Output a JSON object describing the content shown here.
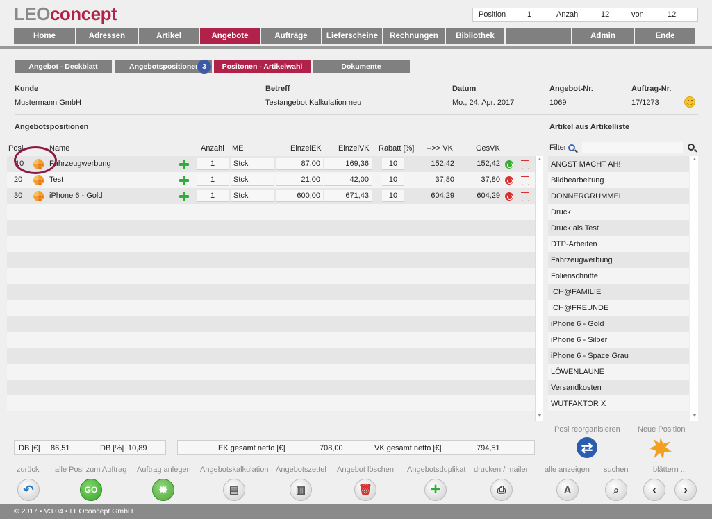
{
  "logo": {
    "part1": "LEO",
    "part2": "concept"
  },
  "infobar": {
    "position_label": "Position",
    "position_value": "1",
    "anzahl_label": "Anzahl",
    "anzahl_value": "12",
    "von_label": "von",
    "von_value": "12"
  },
  "mainnav": [
    "Home",
    "Adressen",
    "Artikel",
    "Angebote",
    "Aufträge",
    "Lieferscheine",
    "Rechnungen",
    "Bibliothek",
    "",
    "Admin",
    "Ende"
  ],
  "subnav": {
    "deckblatt": "Angebot - Deckblatt",
    "positionen": "Angebotspositionen",
    "badge": "3",
    "artikelwahl": "Positonen - Artikelwahl",
    "dokumente": "Dokumente"
  },
  "header": {
    "kunde_label": "Kunde",
    "kunde_value": "Mustermann GmbH",
    "betreff_label": "Betreff",
    "betreff_value": "Testangebot Kalkulation neu",
    "datum_label": "Datum",
    "datum_value": "Mo., 24. Apr. 2017",
    "angebot_label": "Angebot-Nr.",
    "angebot_value": "1069",
    "auftrag_label": "Auftrag-Nr.",
    "auftrag_value": "17/1273"
  },
  "positions_title": "Angebotspositionen",
  "articles_title": "Artikel aus Artikelliste",
  "columns": {
    "posi": "Posi",
    "name": "Name",
    "anzahl": "Anzahl",
    "me": "ME",
    "einzelek": "EinzelEK",
    "einzelvk": "EinzelVK",
    "rabatt": "Rabatt [%]",
    "arrow_vk": "-->> VK",
    "gesvk": "GesVK"
  },
  "rows": [
    {
      "posi": "10",
      "name": "Fahrzeugwerbung",
      "anzahl": "1",
      "me": "Stck",
      "einzelek": "87,00",
      "einzelvk": "169,36",
      "rabatt": "10",
      "vk": "152,42",
      "gesvk": "152,42",
      "status": "green"
    },
    {
      "posi": "20",
      "name": "Test",
      "anzahl": "1",
      "me": "Stck",
      "einzelek": "21,00",
      "einzelvk": "42,00",
      "rabatt": "10",
      "vk": "37,80",
      "gesvk": "37,80",
      "status": "red"
    },
    {
      "posi": "30",
      "name": "iPhone 6 - Gold",
      "anzahl": "1",
      "me": "Stck",
      "einzelek": "600,00",
      "einzelvk": "671,43",
      "rabatt": "10",
      "vk": "604,29",
      "gesvk": "604,29",
      "status": "red"
    }
  ],
  "filter_label": "Filter",
  "articles": [
    "ANGST MACHT AH!",
    "Bildbearbeitung",
    "DONNERGRUMMEL",
    "Druck",
    "Druck als Test",
    "DTP-Arbeiten",
    "Fahrzeugwerbung",
    "Folienschnitte",
    "ICH@FAMILIE",
    "ICH@FREUNDE",
    "iPhone 6 - Gold",
    "iPhone 6 - Silber",
    "iPhone 6 - Space Grau",
    "LÖWENLAUNE",
    "Versandkosten",
    "WUTFAKTOR X"
  ],
  "summary": {
    "db_eur_label": "DB [€]",
    "db_eur_value": "86,51",
    "db_pct_label": "DB [%]",
    "db_pct_value": "10,89",
    "ek_label": "EK gesamt netto [€]",
    "ek_value": "708,00",
    "vk_label": "VK gesamt netto [€]",
    "vk_value": "794,51"
  },
  "right_actions": {
    "reorg": "Posi reorganisieren",
    "new_pos": "Neue Position"
  },
  "bottom": {
    "zurueck": "zurück",
    "alle_posi": "alle Posi zum Auftrag",
    "auftrag_anlegen": "Auftrag anlegen",
    "kalkulation": "Angebotskalkulation",
    "zettel": "Angebotszettel",
    "loeschen": "Angebot löschen",
    "duplikat": "Angebotsduplikat",
    "drucken": "drucken / mailen",
    "alle_anzeigen": "alle anzeigen",
    "suchen": "suchen",
    "blaettern": "blättern ...",
    "go_text": "GO",
    "a_text": "A"
  },
  "footer": "© 2017 • V3.04 • LEOconcept GmbH",
  "colors": {
    "accent": "#b0224a",
    "nav_gray": "#808080",
    "badge": "#3c5aa8",
    "plus_green": "#2fae3a"
  }
}
